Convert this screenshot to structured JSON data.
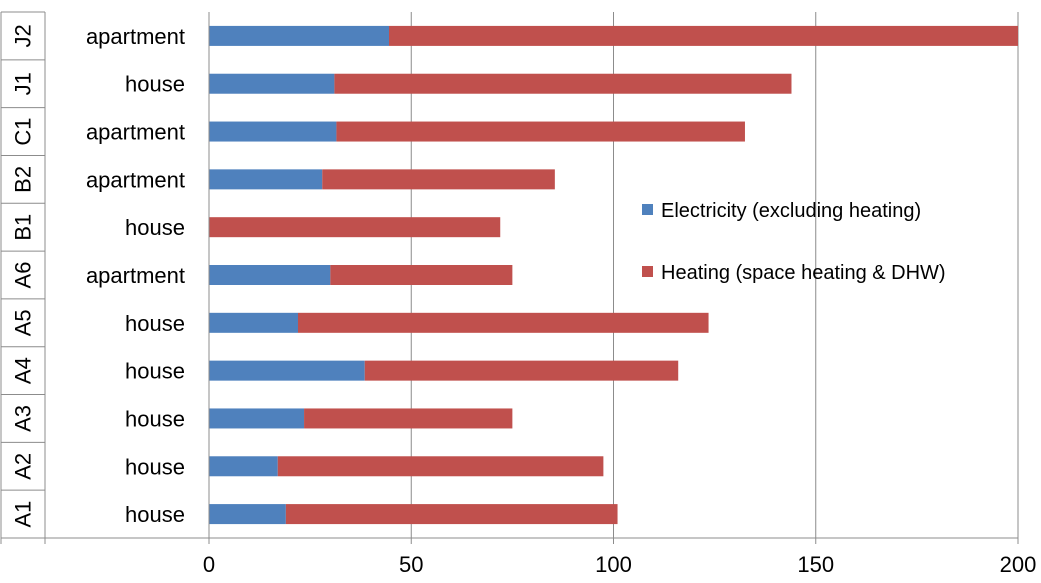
{
  "chart_data": {
    "type": "bar",
    "orientation": "horizontal",
    "stacked": true,
    "title": "",
    "xlabel": "",
    "ylabel": "",
    "xlim": [
      0,
      200
    ],
    "x_ticks": [
      "0",
      "50",
      "100",
      "150",
      "200"
    ],
    "grid": "vertical-lines",
    "legend_position": "center-right",
    "categories": [
      {
        "code": "A1",
        "type": "house"
      },
      {
        "code": "A2",
        "type": "house"
      },
      {
        "code": "A3",
        "type": "house"
      },
      {
        "code": "A4",
        "type": "house"
      },
      {
        "code": "A5",
        "type": "house"
      },
      {
        "code": "A6",
        "type": "apartment"
      },
      {
        "code": "B1",
        "type": "house"
      },
      {
        "code": "B2",
        "type": "apartment"
      },
      {
        "code": "C1",
        "type": "apartment"
      },
      {
        "code": "J1",
        "type": "house"
      },
      {
        "code": "J2",
        "type": "apartment"
      }
    ],
    "series": [
      {
        "name": "Electricity (excluding heating)",
        "color": "#4F81BD",
        "values": [
          19,
          17,
          23.5,
          38.5,
          22,
          30,
          0,
          28,
          31.5,
          31,
          44.5
        ]
      },
      {
        "name": "Heating (space heating & DHW)",
        "color": "#C0504D",
        "values": [
          82,
          80.5,
          51.5,
          77.5,
          101.5,
          45,
          72,
          57.5,
          101,
          113,
          155.5
        ]
      }
    ]
  }
}
